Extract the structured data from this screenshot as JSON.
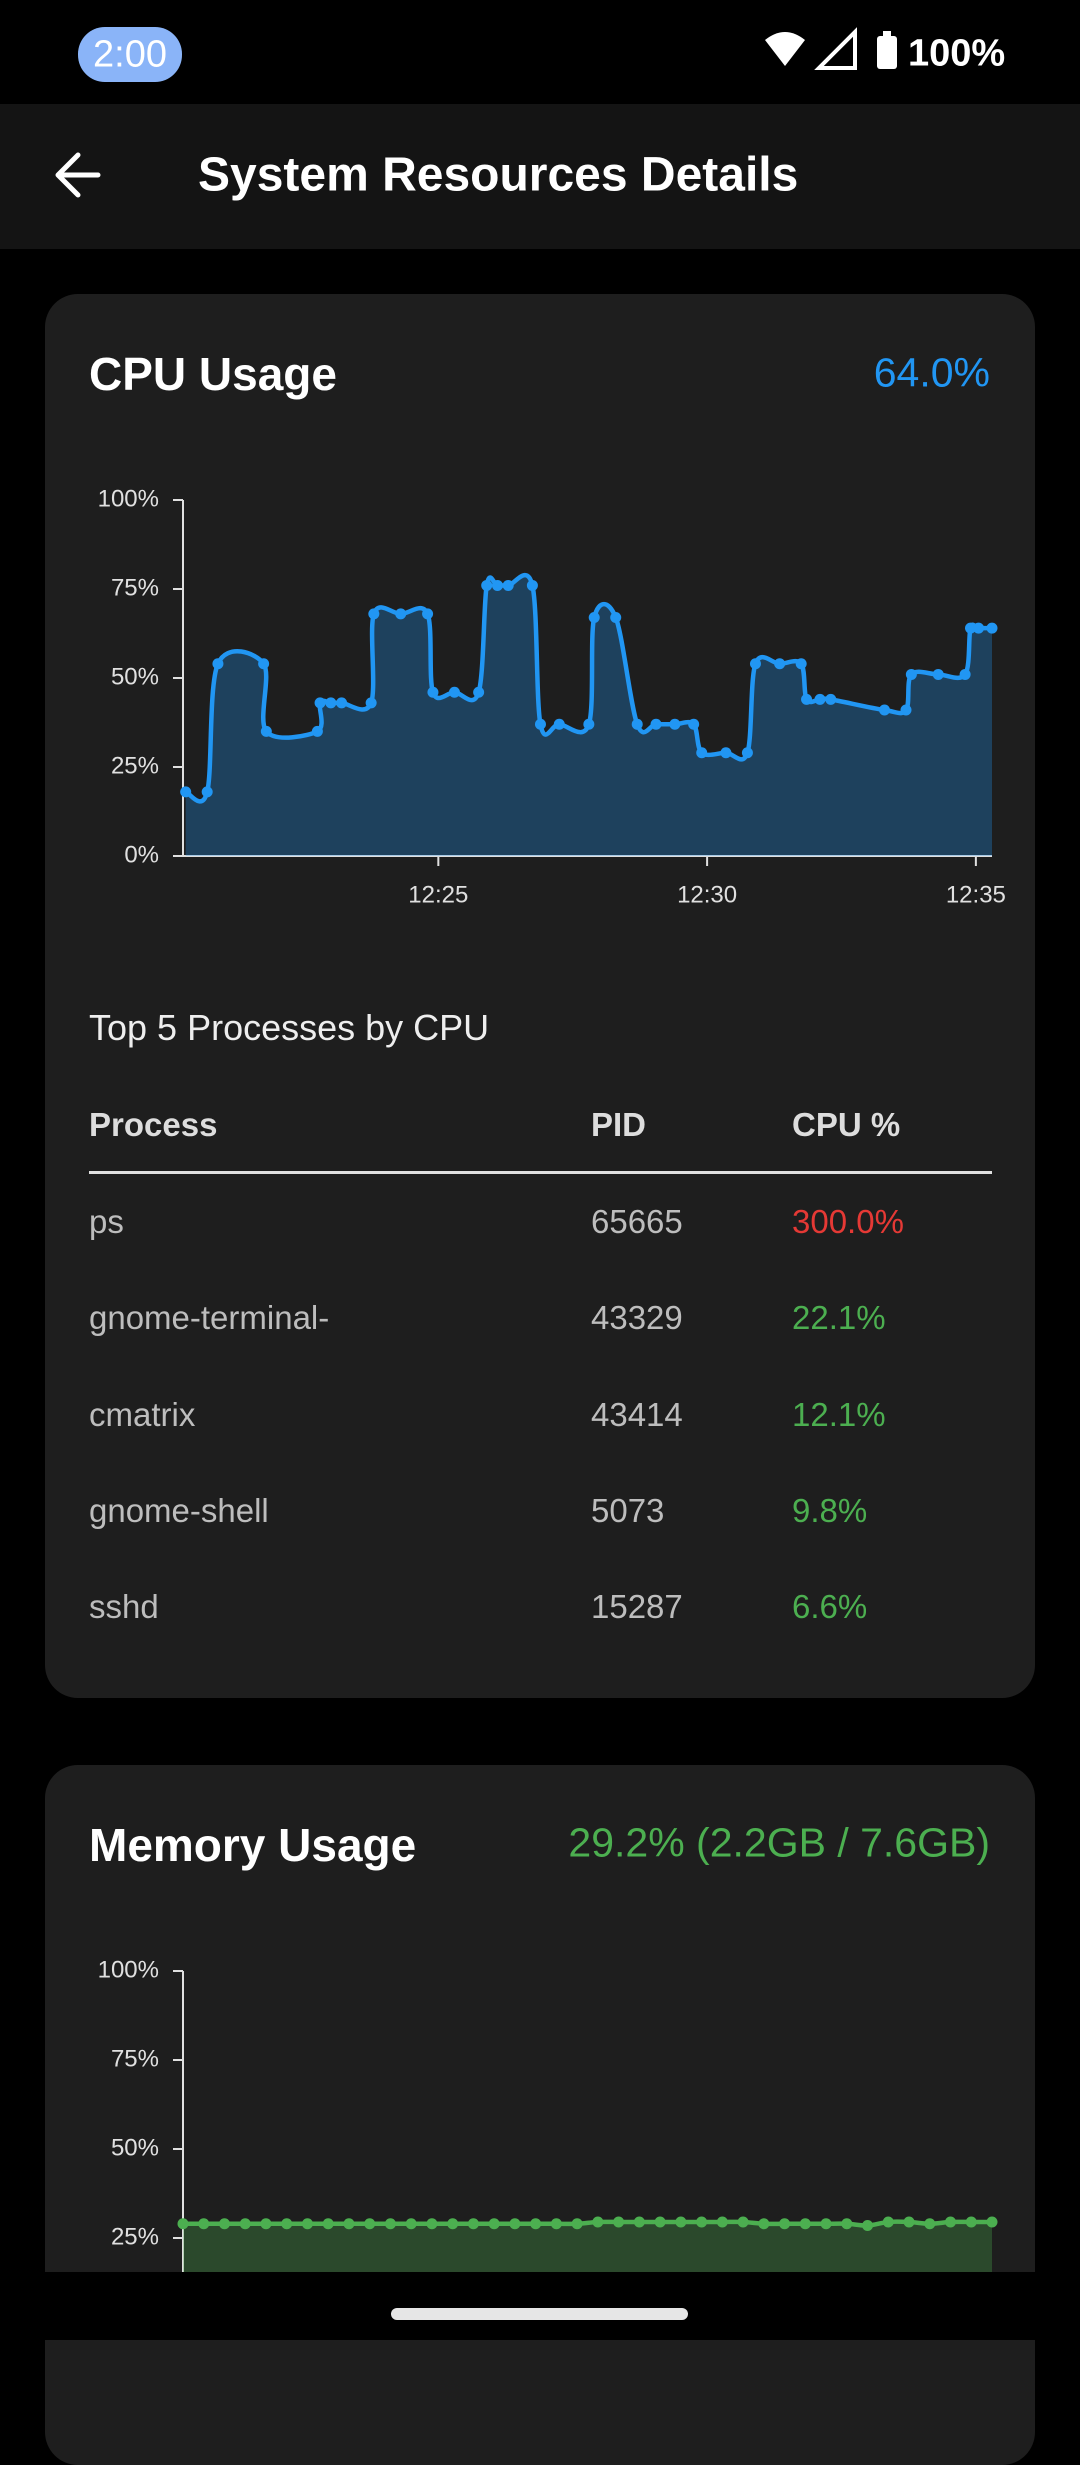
{
  "status_bar": {
    "time": "2:00",
    "battery": "100%"
  },
  "app_bar": {
    "title": "System Resources Details"
  },
  "cpu_card": {
    "title": "CPU Usage",
    "value": "64.0%",
    "chart": {
      "type": "line",
      "color": "#2196f3",
      "x": [
        20.3,
        20.7,
        20.9,
        21.75,
        21.8,
        22.75,
        22.8,
        23.0,
        23.2,
        23.75,
        23.8,
        24.3,
        24.8,
        24.9,
        25.3,
        25.75,
        25.9,
        26.1,
        26.3,
        26.75,
        26.9,
        27.25,
        27.8,
        27.9,
        28.3,
        28.7,
        29.05,
        29.4,
        29.75,
        29.9,
        30.35,
        30.75,
        30.9,
        31.35,
        31.75,
        31.85,
        32.1,
        32.3,
        33.3,
        33.7,
        33.8,
        34.3,
        34.8,
        34.9,
        35.05,
        35.3
      ],
      "values": [
        18,
        18,
        54,
        54,
        35,
        35,
        43,
        43,
        43,
        43,
        68,
        68,
        68,
        46,
        46,
        46,
        76,
        76,
        76,
        76,
        37,
        37,
        37,
        67,
        67,
        37,
        37,
        37,
        37,
        29,
        29,
        29,
        54,
        54,
        54,
        44,
        44,
        44,
        41,
        41,
        51,
        51,
        51,
        64,
        64,
        64
      ],
      "xlim": [
        20.25,
        35.3
      ],
      "xticks": [
        {
          "value": 25,
          "label": "12:25"
        },
        {
          "value": 30,
          "label": "12:30"
        },
        {
          "value": 35,
          "label": "12:35"
        }
      ],
      "ylim": [
        0,
        100
      ],
      "yticks": [
        {
          "value": 0,
          "label": "0%"
        },
        {
          "value": 25,
          "label": "25%"
        },
        {
          "value": 50,
          "label": "50%"
        },
        {
          "value": 75,
          "label": "75%"
        },
        {
          "value": 100,
          "label": "100%"
        }
      ]
    },
    "processes": {
      "title": "Top 5 Processes by CPU",
      "columns": [
        "Process",
        "PID",
        "CPU %"
      ],
      "rows": [
        [
          "ps",
          "65665",
          "300.0%"
        ],
        [
          "gnome-terminal-",
          "43329",
          "22.1%"
        ],
        [
          "cmatrix",
          "43414",
          "12.1%"
        ],
        [
          "gnome-shell",
          "5073",
          "9.8%"
        ],
        [
          "sshd",
          "15287",
          "6.6%"
        ]
      ]
    }
  },
  "memory_card": {
    "title": "Memory Usage",
    "value": "29.2% (2.2GB / 7.6GB)",
    "chart": {
      "type": "line",
      "color": "#4caf50",
      "values": [
        29,
        29,
        29,
        29,
        29,
        29,
        29,
        29,
        29,
        29,
        29,
        29,
        29,
        29,
        29,
        29,
        29,
        29,
        29,
        29,
        29.5,
        29.5,
        29.5,
        29.5,
        29.5,
        29.5,
        29.5,
        29.5,
        29,
        29,
        29,
        29,
        29,
        28.5,
        29.5,
        29.5,
        29,
        29.5,
        29.5,
        29.5
      ],
      "ylim": [
        0,
        100
      ],
      "yticks": [
        {
          "value": 25,
          "label": "25%"
        },
        {
          "value": 50,
          "label": "50%"
        },
        {
          "value": 75,
          "label": "75%"
        },
        {
          "value": 100,
          "label": "100%"
        }
      ]
    }
  }
}
